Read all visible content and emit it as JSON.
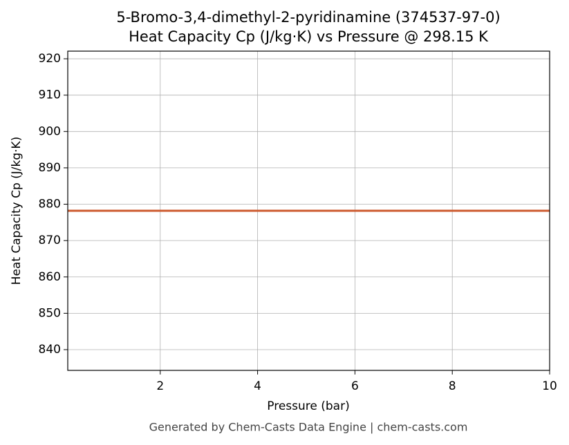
{
  "chart_data": {
    "type": "line",
    "title": "5-Bromo-3,4-dimethyl-2-pyridinamine (374537-97-0)",
    "subtitle": "Heat Capacity Cp (J/kg·K) vs Pressure @ 298.15 K",
    "x_label": "Pressure (bar)",
    "y_label": "Heat Capacity Cp (J/kg·K)",
    "footer": "Generated by Chem-Casts Data Engine | chem-casts.com",
    "x": [
      0.1,
      2,
      4,
      6,
      8,
      10
    ],
    "series": [
      {
        "name": "Heat Capacity Cp",
        "color": "#cc5a2e",
        "values": [
          878.2,
          878.2,
          878.2,
          878.2,
          878.2,
          878.2
        ]
      }
    ],
    "xlim": [
      0.1,
      10
    ],
    "ylim": [
      834.3,
      922.1
    ],
    "xticks": [
      2,
      4,
      6,
      8,
      10
    ],
    "yticks": [
      840,
      850,
      860,
      870,
      880,
      890,
      900,
      910,
      920
    ],
    "grid": true
  }
}
